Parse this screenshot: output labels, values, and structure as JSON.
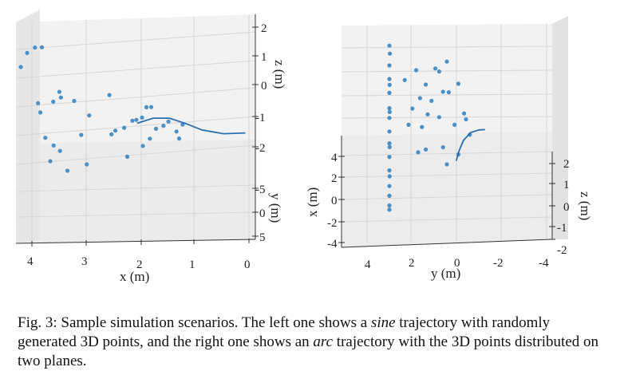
{
  "caption": {
    "label": "Fig. 3:",
    "part1": " Sample simulation scenarios. The left one shows a ",
    "em1": "sine",
    "part2": " trajectory with randomly generated 3D points, and the right one shows an ",
    "em2": "arc",
    "part3": " trajectory with the 3D points distributed on two planes."
  },
  "chart_data": [
    {
      "type": "scatter",
      "projection": "3d",
      "xlabel": "x (m)",
      "ylabel": "y (m)",
      "zlabel": "z (m)",
      "x_ticks": [
        "4",
        "3",
        "2",
        "1",
        "0"
      ],
      "y_ticks": [
        "5",
        "0",
        "-5"
      ],
      "z_ticks": [
        "2",
        "1",
        "0",
        "-1",
        "-2"
      ],
      "xlim": [
        0,
        4
      ],
      "ylim": [
        -5,
        5
      ],
      "zlim": [
        -2,
        2
      ],
      "series": [
        {
          "kind": "points",
          "color": "#4a90c8",
          "points": [
            [
              3.9,
              -1.0,
              1.2
            ],
            [
              3.75,
              -1.5,
              1.1
            ],
            [
              4.0,
              -2.0,
              0.8
            ],
            [
              4.05,
              -3.5,
              0.0
            ],
            [
              3.8,
              -2.0,
              -0.9
            ],
            [
              3.8,
              -1.0,
              -1.0
            ],
            [
              3.7,
              -1.2,
              -1.9
            ],
            [
              3.6,
              0.0,
              -1.9
            ],
            [
              3.55,
              -1.3,
              -0.7
            ],
            [
              3.45,
              -1.0,
              -0.3
            ],
            [
              3.4,
              -1.5,
              -0.6
            ],
            [
              3.2,
              -0.5,
              -0.5
            ],
            [
              2.9,
              -1.0,
              -1.1
            ],
            [
              2.55,
              -0.5,
              -0.3
            ],
            [
              2.4,
              -1.4,
              -1.7
            ],
            [
              2.3,
              0.0,
              -1.3
            ],
            [
              2.1,
              -1.1,
              -1.3
            ],
            [
              2.0,
              -1.7,
              -1.4
            ],
            [
              1.9,
              -1.6,
              -1.3
            ],
            [
              1.85,
              -0.9,
              -0.8
            ],
            [
              1.8,
              -0.6,
              -1.8
            ],
            [
              1.7,
              -0.3,
              -1.4
            ],
            [
              1.5,
              -1.7,
              -1.6
            ],
            [
              1.4,
              -1.9,
              -1.5
            ],
            [
              1.3,
              -0.8,
              -1.6
            ],
            [
              3.75,
              2.0,
              -2.0
            ],
            [
              3.5,
              0.4,
              -2.0
            ],
            [
              3.1,
              0.2,
              -1.5
            ],
            [
              2.3,
              1.3,
              -2.0
            ],
            [
              2.0,
              1.0,
              -1.7
            ],
            [
              3.5,
              3.5,
              -2.0
            ],
            [
              3.1,
              2.5,
              -2.0
            ],
            [
              2.6,
              1.5,
              -1.2
            ],
            [
              1.8,
              0.0,
              -0.6
            ],
            [
              1.2,
              -0.5,
              -1.3
            ],
            [
              1.3,
              0.3,
              -1.6
            ]
          ]
        },
        {
          "kind": "line",
          "name": "",
          "color": "#2a6fad",
          "points": [
            [
              2.0,
              -1.4,
              -1.45
            ],
            [
              1.7,
              -1.5,
              -1.3
            ],
            [
              1.4,
              -1.5,
              -1.3
            ],
            [
              1.1,
              -1.6,
              -1.5
            ],
            [
              0.8,
              -1.5,
              -1.7
            ],
            [
              0.4,
              -1.6,
              -1.85
            ],
            [
              0.0,
              -1.5,
              -1.8
            ]
          ]
        }
      ]
    },
    {
      "type": "scatter",
      "projection": "3d",
      "xlabel": "x (m)",
      "ylabel": "y (m)",
      "zlabel": "z (m)",
      "x_ticks": [
        "4",
        "2",
        "0",
        "-2",
        "-4"
      ],
      "y_ticks": [
        "4",
        "2",
        "0",
        "-2",
        "-4"
      ],
      "z_ticks": [
        "2",
        "1",
        "0",
        "-1",
        "-2"
      ],
      "xlim": [
        -4,
        4
      ],
      "ylim": [
        -4,
        4
      ],
      "zlim": [
        -2,
        2
      ],
      "series": [
        {
          "kind": "points",
          "color": "#4a90c8",
          "points": [
            [
              0.0,
              4.2,
              2.6
            ],
            [
              0.2,
              3.8,
              2.3
            ],
            [
              0.0,
              3.2,
              1.9
            ],
            [
              0.0,
              2.5,
              1.5
            ],
            [
              0.0,
              1.8,
              1.0
            ],
            [
              0.0,
              1.0,
              0.6
            ],
            [
              0.0,
              0.5,
              0.3
            ],
            [
              0.0,
              -0.2,
              -0.1
            ],
            [
              0.0,
              -0.8,
              -0.5
            ],
            [
              0.0,
              -1.5,
              -0.9
            ],
            [
              0.0,
              -2.2,
              -1.3
            ],
            [
              0.0,
              -3.0,
              -1.8
            ],
            [
              0.0,
              -3.5,
              -2.1
            ],
            [
              0.0,
              -4.0,
              -2.4
            ],
            [
              0.1,
              2.2,
              1.3
            ],
            [
              0.1,
              0.8,
              0.5
            ],
            [
              0.1,
              -1.0,
              -0.6
            ],
            [
              0.1,
              -2.5,
              -1.5
            ],
            [
              0.0,
              -4.2,
              -2.6
            ]
          ]
        },
        {
          "kind": "points",
          "color": "#4a90c8",
          "points": [
            [
              3.0,
              3.0,
              2.3
            ],
            [
              2.6,
              2.6,
              2.1
            ],
            [
              2.4,
              2.8,
              1.8
            ],
            [
              2.8,
              1.8,
              1.6
            ],
            [
              1.9,
              2.1,
              1.7
            ],
            [
              1.6,
              1.6,
              1.2
            ],
            [
              2.2,
              1.5,
              1.1
            ],
            [
              1.4,
              2.7,
              1.9
            ],
            [
              3.1,
              1.8,
              1.5
            ],
            [
              3.6,
              2.2,
              1.4
            ],
            [
              0.8,
              2.3,
              1.7
            ],
            [
              1.2,
              1.2,
              0.9
            ],
            [
              2.0,
              1.0,
              0.6
            ],
            [
              2.6,
              0.9,
              0.5
            ],
            [
              3.4,
              0.6,
              0.3
            ],
            [
              1.0,
              0.6,
              0.3
            ],
            [
              1.7,
              0.5,
              0.3
            ],
            [
              3.9,
              1.0,
              0.8
            ],
            [
              4.2,
              0.2,
              0.1
            ],
            [
              4.0,
              0.8,
              0.5
            ],
            [
              1.9,
              -0.4,
              -0.2
            ],
            [
              1.5,
              -0.5,
              -0.3
            ],
            [
              2.8,
              -0.3,
              -0.2
            ],
            [
              3.0,
              -1.0,
              -0.5
            ],
            [
              3.6,
              -0.6,
              -0.3
            ]
          ]
        },
        {
          "kind": "line",
          "name": "",
          "color": "#2a6fad",
          "points": [
            [
              -1.9,
              -0.6,
              -0.2
            ],
            [
              -1.7,
              -0.2,
              -0.1
            ],
            [
              -1.4,
              0.2,
              0.0
            ],
            [
              -0.9,
              0.5,
              0.1
            ],
            [
              -0.3,
              0.6,
              0.15
            ],
            [
              0.1,
              0.6,
              0.2
            ]
          ]
        }
      ]
    }
  ]
}
